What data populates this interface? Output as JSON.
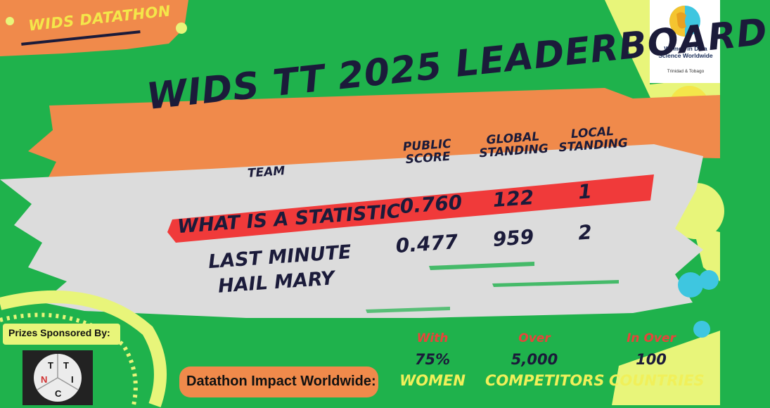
{
  "badge": {
    "label": "WIDS DATATHON"
  },
  "logo": {
    "name": "Women in Data Science Worldwide",
    "sub": "Trinidad & Tobago"
  },
  "title": "WIDS TT 2025 LEADERBOARD",
  "columns": {
    "team": "TEAM",
    "public_score": "PUBLIC SCORE",
    "global_standing": "GLOBAL STANDING",
    "local_standing": "LOCAL STANDING"
  },
  "rows": [
    {
      "team": "WHAT IS A STATISTIC",
      "score": "0.760",
      "global": "122",
      "local": "1"
    },
    {
      "team_line1": "LAST MINUTE",
      "team_line2": "HAIL MARY",
      "score": "0.477",
      "global": "959",
      "local": "2"
    }
  ],
  "sponsor": {
    "label": "Prizes Sponsored By:",
    "letters": [
      "T",
      "T",
      "N",
      "I",
      "C"
    ]
  },
  "impact": {
    "label": "Datathon Impact Worldwide:",
    "stats": [
      {
        "pre": "With",
        "value": "75%",
        "post": "WOMEN"
      },
      {
        "pre": "Over",
        "value": "5,000",
        "post": "COMPETITORS"
      },
      {
        "pre": "In Over",
        "value": "100",
        "post": "COUNTRIES"
      }
    ]
  },
  "colors": {
    "green": "#1fb24c",
    "orange": "#f08a4b",
    "grey": "#dcdcdc",
    "red": "#f03a3a",
    "yellow": "#f0f05a",
    "navy": "#1b1b3a"
  }
}
